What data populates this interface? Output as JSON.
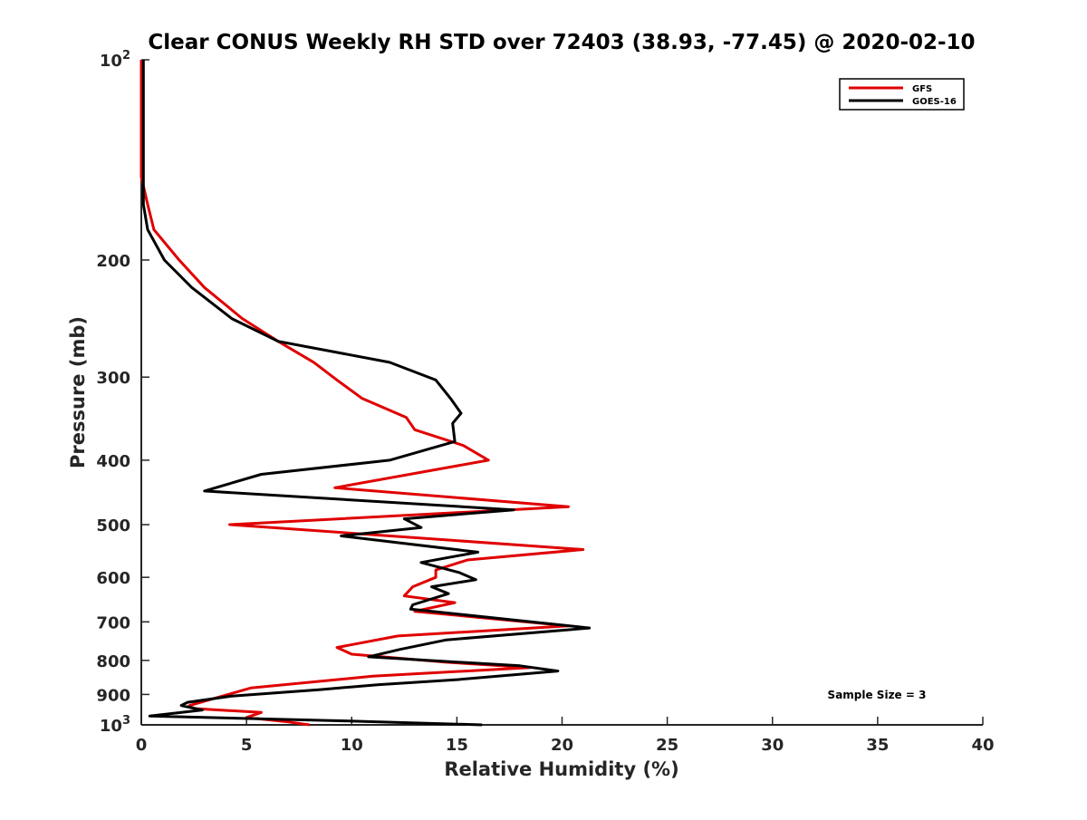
{
  "chart_data": {
    "type": "line",
    "title": "Clear CONUS Weekly RH STD over 72403 (38.93, -77.45) @ 2020-02-10",
    "xlabel": "Relative Humidity (%)",
    "ylabel": "Pressure (mb)",
    "xlim": [
      0,
      40
    ],
    "ylim": [
      100,
      1000
    ],
    "y_scale": "log",
    "y_reversed": true,
    "x_ticks": [
      0,
      5,
      10,
      15,
      20,
      25,
      30,
      35,
      40
    ],
    "x_tick_labels": [
      "0",
      "5",
      "10",
      "15",
      "20",
      "25",
      "30",
      "35",
      "40"
    ],
    "y_ticks": [
      100,
      200,
      300,
      400,
      500,
      600,
      700,
      800,
      900,
      1000
    ],
    "y_tick_labels": [
      {
        "base": "10",
        "exp": "2"
      },
      {
        "base": "200",
        "exp": ""
      },
      {
        "base": "300",
        "exp": ""
      },
      {
        "base": "400",
        "exp": ""
      },
      {
        "base": "500",
        "exp": ""
      },
      {
        "base": "600",
        "exp": ""
      },
      {
        "base": "700",
        "exp": ""
      },
      {
        "base": "800",
        "exp": ""
      },
      {
        "base": "900",
        "exp": ""
      },
      {
        "base": "10",
        "exp": "3"
      }
    ],
    "grid": false,
    "legend_position": "top-right",
    "annotation": "Sample Size = 3",
    "series": [
      {
        "name": "GFS",
        "color": "#e00000",
        "points": [
          [
            0.0,
            100
          ],
          [
            0.0,
            150
          ],
          [
            0.3,
            165
          ],
          [
            0.6,
            180
          ],
          [
            1.8,
            200
          ],
          [
            3.0,
            220
          ],
          [
            4.8,
            245
          ],
          [
            6.5,
            265
          ],
          [
            8.2,
            285
          ],
          [
            9.3,
            303
          ],
          [
            10.5,
            323
          ],
          [
            12.6,
            345
          ],
          [
            13.0,
            360
          ],
          [
            15.3,
            380
          ],
          [
            16.5,
            400
          ],
          [
            9.2,
            440
          ],
          [
            20.3,
            470
          ],
          [
            4.2,
            500
          ],
          [
            21.0,
            545
          ],
          [
            15.5,
            565
          ],
          [
            14.0,
            585
          ],
          [
            14.0,
            600
          ],
          [
            12.9,
            620
          ],
          [
            12.5,
            640
          ],
          [
            14.9,
            655
          ],
          [
            13.0,
            675
          ],
          [
            20.3,
            710
          ],
          [
            12.2,
            735
          ],
          [
            9.3,
            765
          ],
          [
            10.0,
            783
          ],
          [
            14.5,
            805
          ],
          [
            18.5,
            820
          ],
          [
            11.0,
            845
          ],
          [
            5.2,
            880
          ],
          [
            2.3,
            935
          ],
          [
            2.5,
            945
          ],
          [
            5.7,
            958
          ],
          [
            5.0,
            975
          ],
          [
            7.0,
            990
          ],
          [
            8.0,
            1000
          ]
        ]
      },
      {
        "name": "GOES-16",
        "color": "#000000",
        "points": [
          [
            0.1,
            100
          ],
          [
            0.1,
            150
          ],
          [
            0.1,
            165
          ],
          [
            0.3,
            180
          ],
          [
            1.1,
            200
          ],
          [
            2.4,
            220
          ],
          [
            4.3,
            245
          ],
          [
            6.5,
            265
          ],
          [
            11.8,
            285
          ],
          [
            14.0,
            303
          ],
          [
            14.7,
            323
          ],
          [
            15.2,
            340
          ],
          [
            14.8,
            352
          ],
          [
            14.9,
            375
          ],
          [
            11.8,
            400
          ],
          [
            5.7,
            420
          ],
          [
            3.0,
            445
          ],
          [
            17.7,
            475
          ],
          [
            12.5,
            490
          ],
          [
            13.3,
            505
          ],
          [
            9.5,
            520
          ],
          [
            16.0,
            550
          ],
          [
            13.3,
            570
          ],
          [
            15.1,
            590
          ],
          [
            15.9,
            605
          ],
          [
            13.8,
            620
          ],
          [
            14.6,
            635
          ],
          [
            12.9,
            660
          ],
          [
            12.8,
            670
          ],
          [
            21.3,
            715
          ],
          [
            14.5,
            745
          ],
          [
            12.3,
            770
          ],
          [
            10.8,
            790
          ],
          [
            18.0,
            815
          ],
          [
            19.8,
            830
          ],
          [
            15.0,
            855
          ],
          [
            11.3,
            870
          ],
          [
            8.5,
            885
          ],
          [
            4.3,
            905
          ],
          [
            2.2,
            925
          ],
          [
            1.9,
            935
          ],
          [
            2.9,
            950
          ],
          [
            0.4,
            970
          ],
          [
            9.0,
            985
          ],
          [
            16.2,
            1000
          ]
        ]
      }
    ]
  }
}
